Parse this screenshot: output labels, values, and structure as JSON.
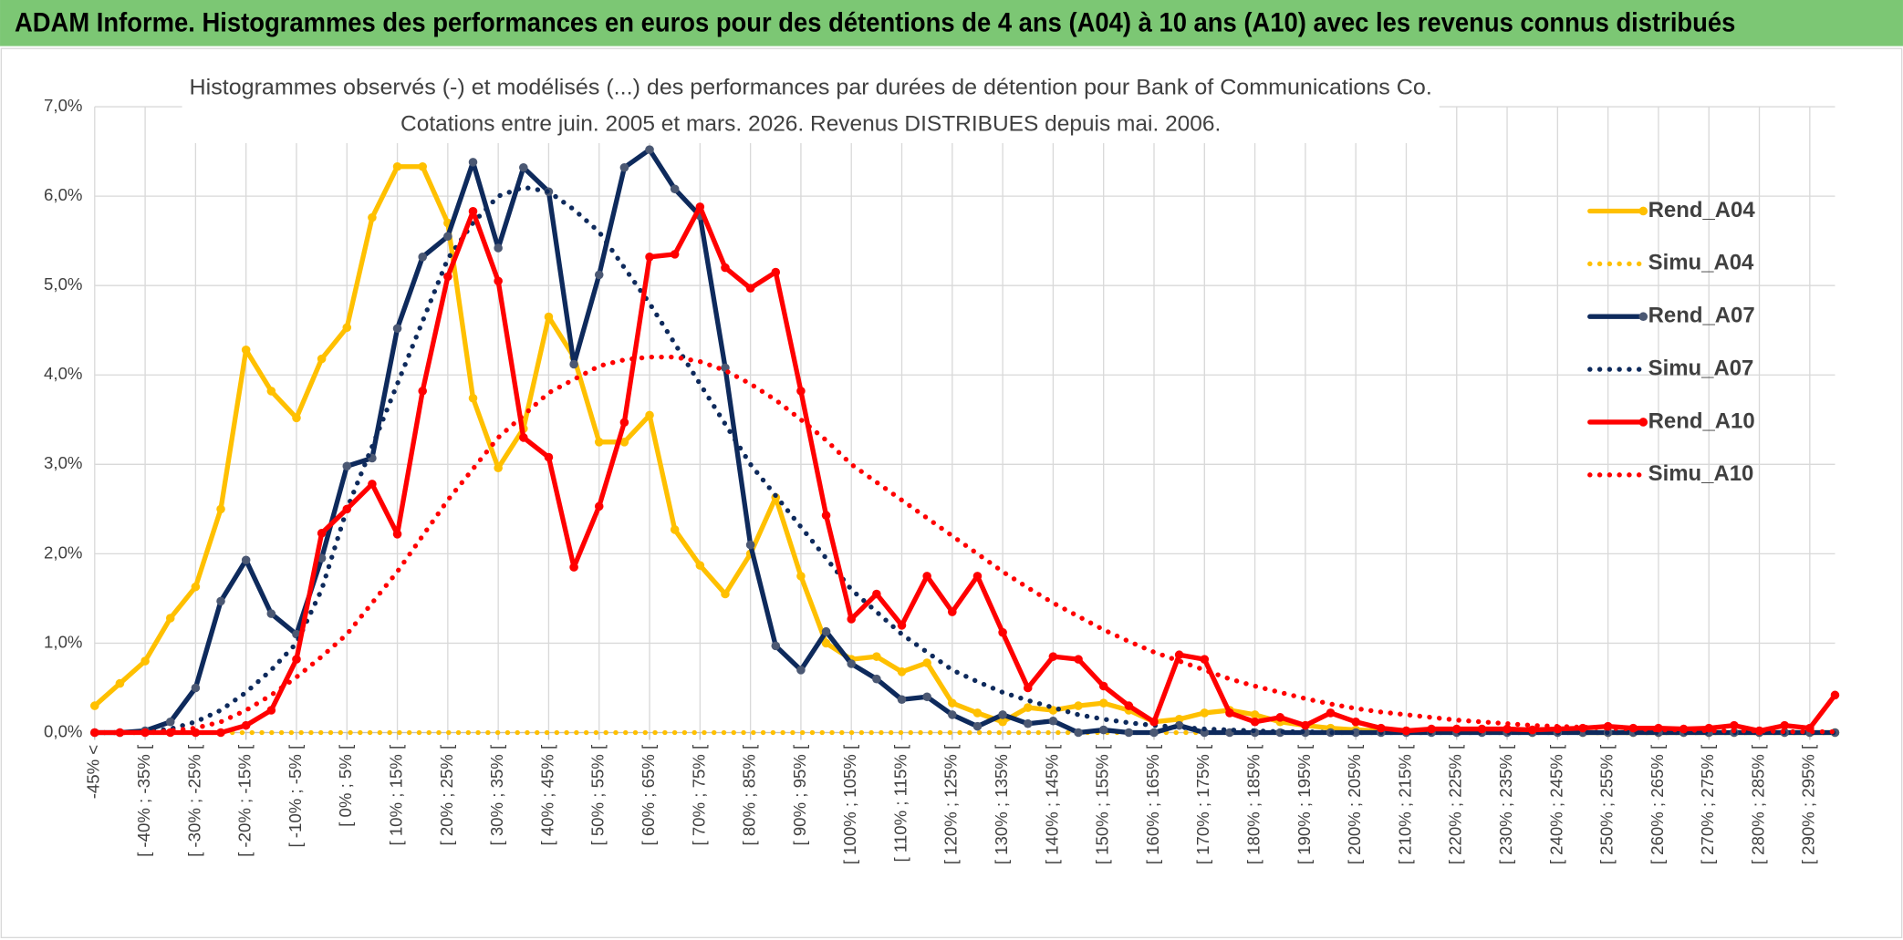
{
  "header": {
    "title": "ADAM Informe. Histogrammes des performances en euros pour des détentions de 4 ans (A04) à 10 ans (A10) avec les revenus connus distribués"
  },
  "chart_data": {
    "type": "line",
    "title": "Histogrammes observés (-) et modélisés (...) des performances par durées de détention pour Bank of Communications Co.",
    "subtitle": "Cotations entre juin. 2005 et mars. 2026. Revenus DISTRIBUES depuis mai. 2006.",
    "categories": [
      "-45% <",
      null,
      "[ -40% ; -35% [",
      null,
      "[ -30% ; -25% [",
      null,
      "[ -20% ; -15% [",
      null,
      "[ -10% ; -5% [",
      null,
      "[ 0% ; 5% [",
      null,
      "[ 10% ; 15% [",
      null,
      "[ 20% ; 25% [",
      null,
      "[ 30% ; 35% [",
      null,
      "[ 40% ; 45% [",
      null,
      "[ 50% ; 55% [",
      null,
      "[ 60% ; 65% [",
      null,
      "[ 70% ; 75% [",
      null,
      "[ 80% ; 85% [",
      null,
      "[ 90% ; 95% [",
      null,
      "[ 100% ; 105% [",
      null,
      "[ 110% ; 115% [",
      null,
      "[ 120% ; 125% [",
      null,
      "[ 130% ; 135% [",
      null,
      "[ 140% ; 145% [",
      null,
      "[ 150% ; 155% [",
      null,
      "[ 160% ; 165% [",
      null,
      "[ 170% ; 175% [",
      null,
      "[ 180% ; 185% [",
      null,
      "[ 190% ; 195% [",
      null,
      "[ 200% ; 205% [",
      null,
      "[ 210% ; 215% [",
      null,
      "[ 220% ; 225% [",
      null,
      "[ 230% ; 235% [",
      null,
      "[ 240% ; 245% [",
      null,
      "[ 250% ; 255% [",
      null,
      "[ 260% ; 265% [",
      null,
      "[ 270% ; 275% [",
      null,
      "[ 280% ; 285% [",
      null,
      "[ 290% ; 295% [",
      null
    ],
    "series": [
      {
        "name": "Rend_A04",
        "color": "#ffc000",
        "style": "solid",
        "values": [
          0.3,
          0.55,
          0.8,
          1.28,
          1.63,
          2.5,
          4.28,
          3.82,
          3.52,
          4.18,
          4.53,
          5.76,
          6.33,
          6.33,
          5.7,
          3.74,
          2.96,
          3.4,
          4.65,
          4.2,
          3.25,
          3.25,
          3.55,
          2.27,
          1.87,
          1.55,
          2.0,
          2.63,
          1.75,
          1.0,
          0.82,
          0.85,
          0.68,
          0.78,
          0.33,
          0.22,
          0.12,
          0.28,
          0.25,
          0.3,
          0.33,
          0.25,
          0.12,
          0.15,
          0.22,
          0.25,
          0.2,
          0.12,
          0.08,
          0.05,
          0.03,
          0.02,
          0.02,
          0.01,
          0.02,
          0.01,
          0.01,
          0,
          0.01,
          0,
          0,
          0,
          0,
          0,
          0,
          0,
          0,
          0,
          0,
          0
        ]
      },
      {
        "name": "Simu_A04",
        "color": "#ffc000",
        "style": "dotted",
        "values": [
          0,
          0,
          0,
          0,
          0,
          0,
          0,
          0,
          0,
          0,
          0,
          0,
          0,
          0,
          0,
          0,
          0,
          0,
          0,
          0,
          0,
          0,
          0,
          0,
          0,
          0,
          0,
          0,
          0,
          0,
          0,
          0,
          0,
          0,
          0,
          0,
          0,
          0,
          0,
          0,
          0,
          0,
          0,
          0,
          0,
          0,
          0,
          0,
          0,
          0,
          0,
          0,
          0,
          0,
          0,
          0,
          0,
          0,
          0,
          0,
          0,
          0,
          0,
          0,
          0,
          0,
          0,
          0,
          0,
          0
        ]
      },
      {
        "name": "Rend_A07",
        "color": "#0e2a5c",
        "style": "solid",
        "values": [
          0,
          0,
          0.02,
          0.12,
          0.5,
          1.47,
          1.93,
          1.33,
          1.1,
          1.95,
          2.98,
          3.07,
          4.52,
          5.32,
          5.55,
          6.38,
          5.42,
          6.32,
          6.05,
          4.12,
          5.12,
          6.32,
          6.52,
          6.08,
          5.78,
          4.08,
          2.1,
          0.97,
          0.7,
          1.13,
          0.77,
          0.6,
          0.37,
          0.4,
          0.2,
          0.07,
          0.2,
          0.1,
          0.13,
          0,
          0.03,
          0,
          0,
          0.08,
          0,
          0,
          0,
          0,
          0,
          0,
          0,
          0,
          0,
          0,
          0,
          0,
          0,
          0,
          0,
          0,
          0,
          0,
          0,
          0,
          0,
          0,
          0,
          0,
          0,
          0
        ]
      },
      {
        "name": "Simu_A07",
        "color": "#0e2a5c",
        "style": "dotted",
        "values": [
          0,
          0,
          0.01,
          0.04,
          0.12,
          0.25,
          0.45,
          0.7,
          1.0,
          1.6,
          2.5,
          3.2,
          3.9,
          4.6,
          5.3,
          5.7,
          6.0,
          6.1,
          6.05,
          5.85,
          5.6,
          5.2,
          4.8,
          4.35,
          3.9,
          3.45,
          3.0,
          2.65,
          2.3,
          1.95,
          1.6,
          1.35,
          1.1,
          0.9,
          0.7,
          0.57,
          0.45,
          0.36,
          0.28,
          0.2,
          0.15,
          0.11,
          0.08,
          0.06,
          0.04,
          0.03,
          0.02,
          0.01,
          0.01,
          0,
          0,
          0,
          0,
          0,
          0,
          0,
          0,
          0,
          0,
          0,
          0,
          0,
          0,
          0,
          0,
          0,
          0,
          0,
          0,
          0
        ]
      },
      {
        "name": "Rend_A10",
        "color": "#ff0000",
        "style": "solid",
        "values": [
          0,
          0,
          0,
          0,
          0,
          0,
          0.08,
          0.25,
          0.82,
          2.23,
          2.5,
          2.78,
          2.22,
          3.82,
          5.1,
          5.83,
          5.05,
          3.3,
          3.08,
          1.85,
          2.53,
          3.47,
          5.32,
          5.35,
          5.88,
          5.2,
          4.97,
          5.15,
          3.82,
          2.43,
          1.27,
          1.55,
          1.2,
          1.75,
          1.35,
          1.75,
          1.12,
          0.5,
          0.85,
          0.82,
          0.52,
          0.3,
          0.12,
          0.87,
          0.82,
          0.22,
          0.12,
          0.17,
          0.08,
          0.22,
          0.12,
          0.05,
          0.02,
          0.04,
          0.04,
          0.04,
          0.04,
          0.03,
          0.04,
          0.05,
          0.07,
          0.05,
          0.05,
          0.04,
          0.05,
          0.08,
          0.02,
          0.08,
          0.05,
          0.42
        ]
      },
      {
        "name": "Simu_A10",
        "color": "#ff0000",
        "style": "dotted",
        "values": [
          0,
          0,
          0,
          0.02,
          0.05,
          0.12,
          0.25,
          0.42,
          0.62,
          0.85,
          1.1,
          1.45,
          1.8,
          2.2,
          2.6,
          2.95,
          3.3,
          3.55,
          3.8,
          3.95,
          4.1,
          4.17,
          4.2,
          4.2,
          4.15,
          4.05,
          3.9,
          3.72,
          3.5,
          3.27,
          3.0,
          2.8,
          2.6,
          2.4,
          2.2,
          2.0,
          1.8,
          1.62,
          1.45,
          1.3,
          1.15,
          1.02,
          0.9,
          0.8,
          0.7,
          0.6,
          0.52,
          0.45,
          0.38,
          0.32,
          0.27,
          0.23,
          0.2,
          0.17,
          0.14,
          0.12,
          0.1,
          0.08,
          0.07,
          0.06,
          0.05,
          0.04,
          0.03,
          0.03,
          0.02,
          0.02,
          0.02,
          0.01,
          0.01,
          0.01
        ]
      }
    ],
    "ylim": [
      0,
      7
    ],
    "yticks": [
      {
        "value": 0,
        "label": "0,0%"
      },
      {
        "value": 1,
        "label": "1,0%"
      },
      {
        "value": 2,
        "label": "2,0%"
      },
      {
        "value": 3,
        "label": "3,0%"
      },
      {
        "value": 4,
        "label": "4,0%"
      },
      {
        "value": 5,
        "label": "5,0%"
      },
      {
        "value": 6,
        "label": "6,0%"
      },
      {
        "value": 7,
        "label": "7,0%"
      }
    ],
    "grid": true,
    "legend": "right"
  }
}
